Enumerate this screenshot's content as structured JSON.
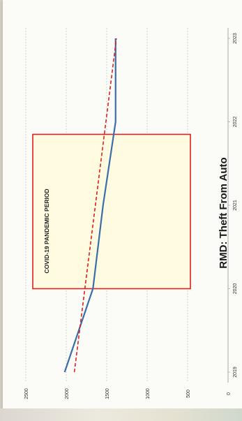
{
  "chart_data": {
    "type": "line",
    "title": "RMD: Theft From Auto",
    "orientation": "rotated 90° clockwise (x axis runs along the right edge, y axis along the bottom)",
    "x": [
      "2019",
      "2020",
      "2021",
      "2022",
      "2023"
    ],
    "ylim": [
      0,
      2500
    ],
    "yticks": [
      0,
      500,
      1000,
      1500,
      2000,
      2500
    ],
    "grid": true,
    "series": [
      {
        "values": [
          2020,
          1670,
          1545,
          1390,
          1390
        ],
        "color": "#3a6ea8",
        "style": "solid"
      },
      {
        "values": [
          1900,
          1770,
          1640,
          1510,
          1380
        ],
        "color": "#e0201c",
        "style": "dashed",
        "kind": "trendline"
      }
    ],
    "highlight": {
      "label": "COVID-19 PANDEMIC PERIOD",
      "x_start": 2020.0,
      "x_end": 2021.85,
      "fill": "#fffbe0",
      "border": "#e0201c"
    }
  }
}
